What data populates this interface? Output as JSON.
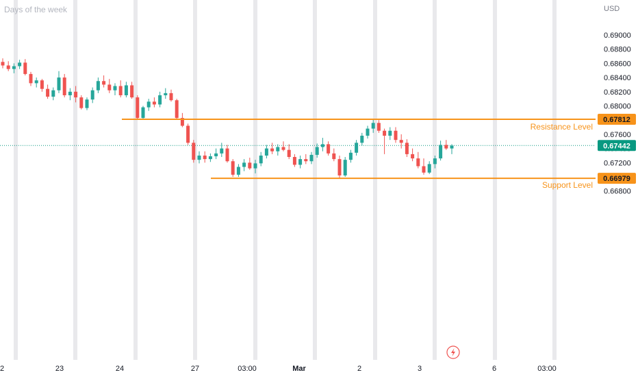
{
  "chart_data": {
    "type": "candlestick",
    "title": "Days of the week",
    "currency": "USD",
    "ylim": [
      0.6675,
      0.691
    ],
    "yticks": [
      "0.69000",
      "0.68800",
      "0.68600",
      "0.68400",
      "0.68200",
      "0.68000",
      "0.67800",
      "0.67600",
      "0.67400",
      "0.67200",
      "0.67000",
      "0.66800"
    ],
    "xticks": [
      "2",
      "23",
      "24",
      "27",
      "03:00",
      "Mar",
      "2",
      "3",
      "6",
      "03:00"
    ],
    "xtick_bold": [
      "Mar"
    ],
    "resistance": {
      "label": "Resistance Level",
      "value": "0.67812",
      "price": 0.67812
    },
    "support": {
      "label": "Support Level",
      "value": "0.66979",
      "price": 0.66979
    },
    "last_price": {
      "value": "0.67442",
      "price": 0.67442
    },
    "colors": {
      "up": "#26a69a",
      "down": "#ef5350",
      "level": "#f7931a",
      "last": "#089981",
      "session_band": "#e9e9ec"
    },
    "series": [
      {
        "name": "",
        "ohlc": [
          [
            0.6862,
            0.6867,
            0.6853,
            0.6857
          ],
          [
            0.6857,
            0.6863,
            0.6849,
            0.6852
          ],
          [
            0.6852,
            0.686,
            0.6846,
            0.6856
          ],
          [
            0.6856,
            0.6865,
            0.6852,
            0.6861
          ],
          [
            0.6861,
            0.6866,
            0.6843,
            0.6845
          ],
          [
            0.6845,
            0.6848,
            0.6828,
            0.6832
          ],
          [
            0.6832,
            0.684,
            0.6826,
            0.6836
          ],
          [
            0.6836,
            0.6838,
            0.682,
            0.6824
          ],
          [
            0.6824,
            0.683,
            0.681,
            0.6813
          ],
          [
            0.6813,
            0.6826,
            0.6808,
            0.6822
          ],
          [
            0.6822,
            0.6849,
            0.6818,
            0.684
          ],
          [
            0.684,
            0.6845,
            0.6812,
            0.6815
          ],
          [
            0.6815,
            0.6825,
            0.6808,
            0.682
          ],
          [
            0.682,
            0.6828,
            0.6805,
            0.6812
          ],
          [
            0.6812,
            0.6815,
            0.6795,
            0.6797
          ],
          [
            0.6797,
            0.6812,
            0.6794,
            0.6809
          ],
          [
            0.6809,
            0.6826,
            0.6804,
            0.6822
          ],
          [
            0.6822,
            0.684,
            0.6818,
            0.6835
          ],
          [
            0.6835,
            0.6843,
            0.6826,
            0.683
          ],
          [
            0.683,
            0.6838,
            0.6818,
            0.6822
          ],
          [
            0.6822,
            0.6832,
            0.6815,
            0.6828
          ],
          [
            0.6828,
            0.6836,
            0.6812,
            0.6815
          ],
          [
            0.6815,
            0.6834,
            0.6812,
            0.6829
          ],
          [
            0.6829,
            0.6834,
            0.681,
            0.6812
          ],
          [
            0.6812,
            0.6815,
            0.6781,
            0.6783
          ],
          [
            0.6783,
            0.68,
            0.6781,
            0.6798
          ],
          [
            0.6798,
            0.681,
            0.6793,
            0.6806
          ],
          [
            0.6806,
            0.6812,
            0.6798,
            0.6802
          ],
          [
            0.6802,
            0.682,
            0.6798,
            0.6815
          ],
          [
            0.6815,
            0.6825,
            0.681,
            0.6818
          ],
          [
            0.6818,
            0.6823,
            0.6806,
            0.6808
          ],
          [
            0.6808,
            0.681,
            0.6781,
            0.6783
          ],
          [
            0.6783,
            0.679,
            0.677,
            0.6772
          ],
          [
            0.6772,
            0.6775,
            0.6745,
            0.6748
          ],
          [
            0.6748,
            0.6752,
            0.672,
            0.6724
          ],
          [
            0.6724,
            0.6736,
            0.6719,
            0.673
          ],
          [
            0.673,
            0.6736,
            0.672,
            0.6725
          ],
          [
            0.6725,
            0.6733,
            0.6721,
            0.6729
          ],
          [
            0.6729,
            0.674,
            0.6725,
            0.6733
          ],
          [
            0.6733,
            0.6748,
            0.6728,
            0.674
          ],
          [
            0.674,
            0.6745,
            0.672,
            0.6722
          ],
          [
            0.6722,
            0.6725,
            0.67,
            0.6703
          ],
          [
            0.6703,
            0.6718,
            0.67,
            0.6714
          ],
          [
            0.6714,
            0.6725,
            0.6708,
            0.672
          ],
          [
            0.672,
            0.6727,
            0.671,
            0.6712
          ],
          [
            0.6712,
            0.6724,
            0.6705,
            0.6719
          ],
          [
            0.6719,
            0.6735,
            0.6715,
            0.673
          ],
          [
            0.673,
            0.6745,
            0.6726,
            0.674
          ],
          [
            0.674,
            0.6748,
            0.6732,
            0.6736
          ],
          [
            0.6736,
            0.6746,
            0.673,
            0.6742
          ],
          [
            0.6742,
            0.675,
            0.6736,
            0.6738
          ],
          [
            0.6738,
            0.6746,
            0.6725,
            0.6728
          ],
          [
            0.6728,
            0.6732,
            0.6714,
            0.6717
          ],
          [
            0.6717,
            0.673,
            0.6712,
            0.6725
          ],
          [
            0.6725,
            0.6732,
            0.6718,
            0.6722
          ],
          [
            0.6722,
            0.6735,
            0.6718,
            0.6731
          ],
          [
            0.6731,
            0.6747,
            0.6727,
            0.6742
          ],
          [
            0.6742,
            0.6755,
            0.6736,
            0.6746
          ],
          [
            0.6746,
            0.675,
            0.673,
            0.6733
          ],
          [
            0.6733,
            0.674,
            0.6722,
            0.6725
          ],
          [
            0.6725,
            0.673,
            0.6698,
            0.6702
          ],
          [
            0.6702,
            0.6728,
            0.67,
            0.6724
          ],
          [
            0.6724,
            0.6738,
            0.672,
            0.6734
          ],
          [
            0.6734,
            0.6752,
            0.673,
            0.6748
          ],
          [
            0.6748,
            0.6762,
            0.6744,
            0.6758
          ],
          [
            0.6758,
            0.6772,
            0.6754,
            0.6768
          ],
          [
            0.6768,
            0.6781,
            0.6762,
            0.6776
          ],
          [
            0.6776,
            0.678,
            0.6762,
            0.6765
          ],
          [
            0.6765,
            0.6768,
            0.6732,
            0.6758
          ],
          [
            0.6758,
            0.677,
            0.6752,
            0.6765
          ],
          [
            0.6765,
            0.677,
            0.6748,
            0.6752
          ],
          [
            0.6752,
            0.676,
            0.674,
            0.6748
          ],
          [
            0.6748,
            0.6753,
            0.6728,
            0.6732
          ],
          [
            0.6732,
            0.674,
            0.6722,
            0.6726
          ],
          [
            0.6726,
            0.6735,
            0.6712,
            0.6715
          ],
          [
            0.6715,
            0.6726,
            0.6703,
            0.6706
          ],
          [
            0.6706,
            0.6722,
            0.6704,
            0.6718
          ],
          [
            0.6718,
            0.673,
            0.6712,
            0.6726
          ],
          [
            0.6726,
            0.6751,
            0.6723,
            0.6745
          ],
          [
            0.6745,
            0.6752,
            0.6738,
            0.674
          ],
          [
            0.674,
            0.6746,
            0.6732,
            0.6744
          ]
        ]
      }
    ]
  }
}
